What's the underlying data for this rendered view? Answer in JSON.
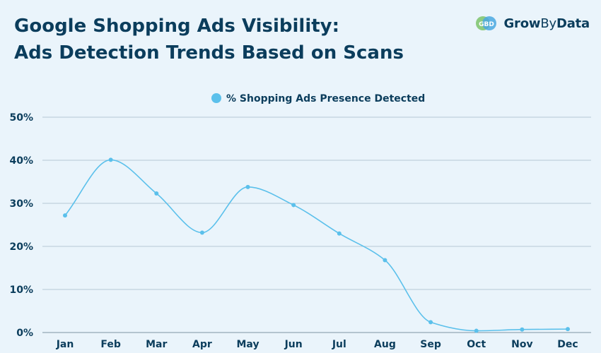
{
  "title_line1": "Google Shopping Ads Visibility:",
  "title_line2": "Ads Detection Trends Based on Scans",
  "logo": {
    "grow": "Grow",
    "by": "By",
    "data": "Data",
    "mark": "GBD"
  },
  "colors": {
    "line": "#5bc0eb",
    "title": "#0b3d5c",
    "grid": "#b7c9d6",
    "background": "#eaf4fb"
  },
  "chart_data": {
    "type": "line",
    "categories": [
      "Jan",
      "Feb",
      "Mar",
      "Apr",
      "May",
      "Jun",
      "Jul",
      "Aug",
      "Sep",
      "Oct",
      "Nov",
      "Dec"
    ],
    "series": [
      {
        "name": "% Shopping Ads Presence Detected",
        "values": [
          27.2,
          40.1,
          32.3,
          23.2,
          33.8,
          29.6,
          23.0,
          16.8,
          2.4,
          0.4,
          0.7,
          0.8
        ]
      }
    ],
    "ylim": [
      0,
      50
    ],
    "yticks": [
      "0%",
      "10%",
      "20%",
      "30%",
      "40%",
      "50%"
    ],
    "ytick_values": [
      0,
      10,
      20,
      30,
      40,
      50
    ],
    "legend_position": "top-center",
    "grid": true
  }
}
